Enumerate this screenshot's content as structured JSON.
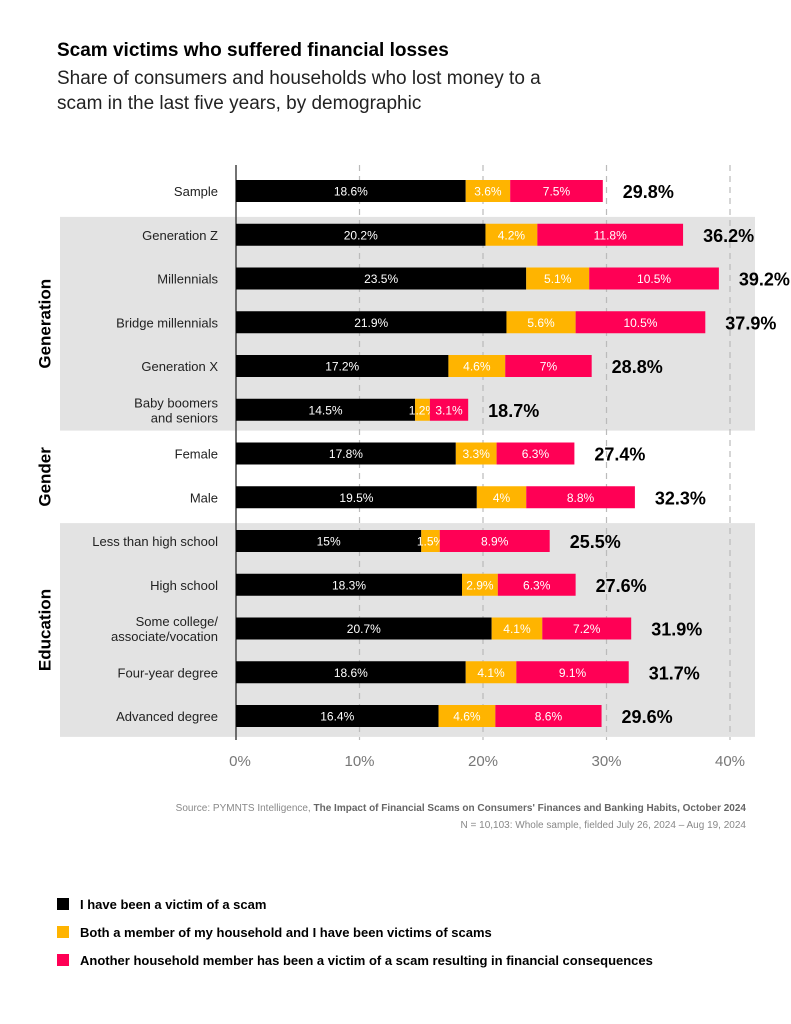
{
  "chart_data": {
    "type": "bar",
    "orientation": "horizontal",
    "stacked": true,
    "title": "Scam victims who suffered financial losses",
    "subtitle": "Share of consumers and households who lost money to a scam in the last five years, by demographic",
    "categories": [
      "Sample",
      "Generation Z",
      "Millennials",
      "Bridge millennials",
      "Generation X",
      "Baby boomers and seniors",
      "Female",
      "Male",
      "Less than high school",
      "High school",
      "Some college/ associate/vocation",
      "Four-year degree",
      "Advanced degree"
    ],
    "groups": [
      {
        "name": "Generation",
        "categories": [
          "Generation Z",
          "Millennials",
          "Bridge millennials",
          "Generation X",
          "Baby boomers and seniors"
        ]
      },
      {
        "name": "Gender",
        "categories": [
          "Female",
          "Male"
        ]
      },
      {
        "name": "Education",
        "categories": [
          "Less than high school",
          "High school",
          "Some college/ associate/vocation",
          "Four-year degree",
          "Advanced degree"
        ]
      }
    ],
    "series": [
      {
        "name": "I have been a victim of a scam",
        "color": "#000000",
        "values": [
          18.6,
          20.2,
          23.5,
          21.9,
          17.2,
          14.5,
          17.8,
          19.5,
          15,
          18.3,
          20.7,
          18.6,
          16.4
        ]
      },
      {
        "name": "Both a member of my household and I have been victims of scams",
        "color": "#FFB400",
        "values": [
          3.6,
          4.2,
          5.1,
          5.6,
          4.6,
          1.2,
          3.3,
          4,
          1.5,
          2.9,
          4.1,
          4.1,
          4.6
        ]
      },
      {
        "name": "Another household member has been a victim of a scam resulting in financial consequences",
        "color": "#FF0055",
        "values": [
          7.5,
          11.8,
          10.5,
          10.5,
          7,
          3.1,
          6.3,
          8.8,
          8.9,
          6.3,
          7.2,
          9.1,
          8.6
        ]
      }
    ],
    "totals": [
      29.8,
      36.2,
      39.2,
      37.9,
      28.8,
      18.7,
      27.4,
      32.3,
      25.5,
      27.6,
      31.9,
      31.7,
      29.6
    ],
    "xlim": [
      0,
      40
    ],
    "xticks": [
      "0%",
      "10%",
      "20%",
      "30%",
      "40%"
    ],
    "grid": "vertical dashed",
    "legend_placement": "bottom-left"
  },
  "source": {
    "prefix": "Source: PYMNTS Intelligence, ",
    "report": "The Impact of Financial Scams on Consumers' Finances and Banking Habits, October 2024",
    "note": "N = 10,103: Whole sample, fielded July 26, 2024 – Aug 19, 2024"
  }
}
